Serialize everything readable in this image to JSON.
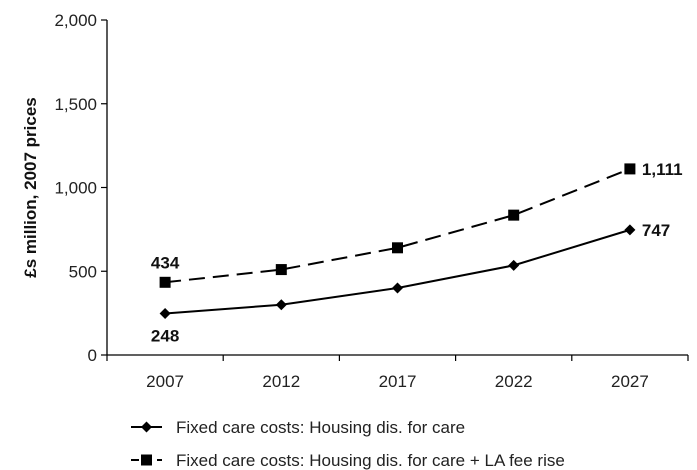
{
  "chart_data": {
    "type": "line",
    "title": "",
    "xlabel": "",
    "ylabel": "£s million, 2007 prices",
    "categories": [
      "2007",
      "2012",
      "2017",
      "2022",
      "2027"
    ],
    "ylim": [
      0,
      2000
    ],
    "yticks": [
      0,
      500,
      1000,
      1500,
      2000
    ],
    "ytick_labels": [
      "0",
      "500",
      "1,000",
      "1,500",
      "2,000"
    ],
    "grid": false,
    "legend_position": "bottom",
    "series": [
      {
        "name": "Fixed care costs: Housing dis. for care",
        "values": [
          248,
          300,
          400,
          535,
          747
        ],
        "line_style": "solid",
        "marker": "diamond",
        "color": "#000000",
        "data_labels": [
          {
            "index": 0,
            "text": "248",
            "side": "below"
          },
          {
            "index": 4,
            "text": "747",
            "side": "right"
          }
        ]
      },
      {
        "name": "Fixed care costs: Housing dis. for care + LA fee rise",
        "values": [
          434,
          510,
          640,
          835,
          1111
        ],
        "line_style": "dashed",
        "marker": "square",
        "color": "#000000",
        "data_labels": [
          {
            "index": 0,
            "text": "434",
            "side": "above"
          },
          {
            "index": 4,
            "text": "1,111",
            "side": "right"
          }
        ]
      }
    ]
  }
}
